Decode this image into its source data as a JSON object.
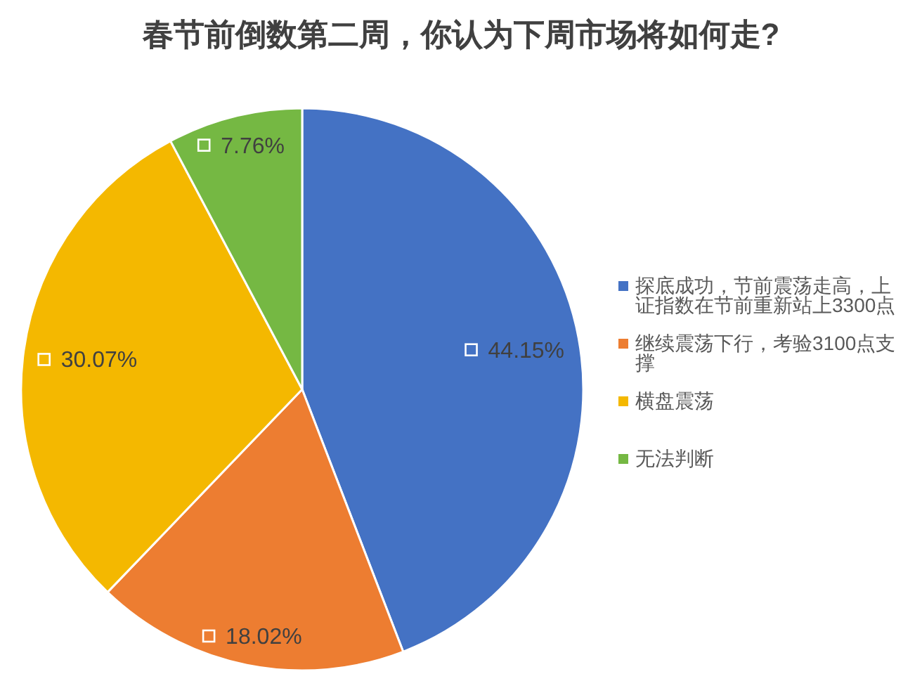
{
  "chart_data": {
    "type": "pie",
    "title": "春节前倒数第二周，你认为下周市场将如何走?",
    "categories": [
      "探底成功，节前震荡走高，上证指数在节前重新站上3300点",
      "继续震荡下行，考验3100点支撑",
      "横盘震荡",
      "无法判断"
    ],
    "values": [
      44.15,
      18.02,
      30.07,
      7.76
    ],
    "colors": [
      "#4472c4",
      "#ed7d31",
      "#f4b800",
      "#75b843"
    ],
    "value_labels": [
      "44.15%",
      "18.02%",
      "30.07%",
      "7.76%"
    ],
    "legend": "right"
  }
}
